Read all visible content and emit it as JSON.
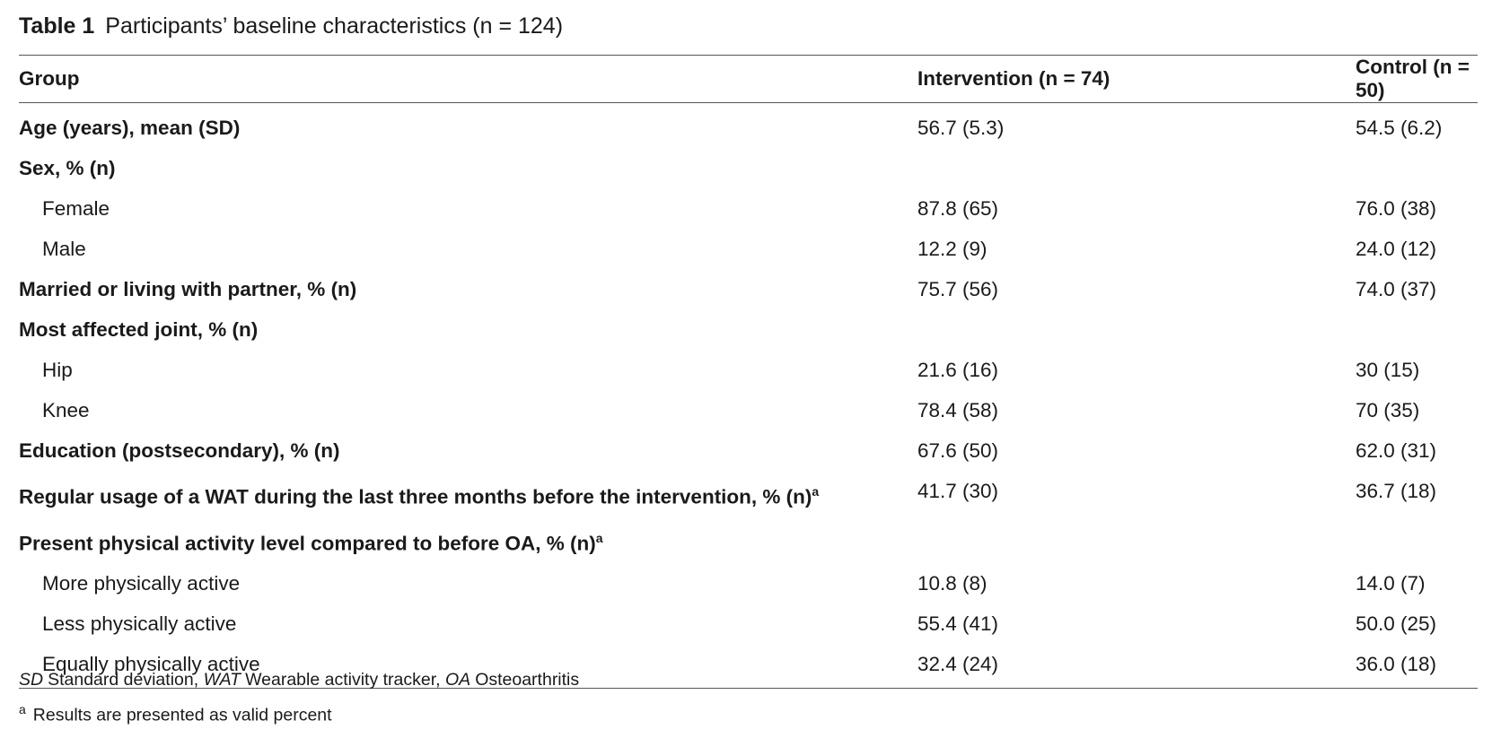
{
  "header": {
    "label": "Table 1",
    "title": "Participants’ baseline characteristics (n = 124)"
  },
  "table": {
    "columns": [
      "Group",
      "Intervention (n = 74)",
      "Control (n = 50)"
    ],
    "rows": [
      {
        "label": "Age (years), mean (SD)",
        "values": [
          "56.7 (5.3)",
          "54.5 (6.2)"
        ]
      },
      {
        "label": "Sex, % (n)",
        "items": [
          {
            "label": "Female",
            "values": [
              "87.8 (65)",
              "76.0 (38)"
            ]
          },
          {
            "label": "Male",
            "values": [
              "12.2 (9)",
              "24.0 (12)"
            ]
          }
        ]
      },
      {
        "label": "Married or living with partner, % (n)",
        "values": [
          "75.7 (56)",
          "74.0 (37)"
        ]
      },
      {
        "label": "Most affected joint, % (n)",
        "items": [
          {
            "label": "Hip",
            "values": [
              "21.6 (16)",
              "30 (15)"
            ]
          },
          {
            "label": "Knee",
            "values": [
              "78.4 (58)",
              "70 (35)"
            ]
          }
        ]
      },
      {
        "label": "Education (postsecondary), % (n)",
        "values": [
          "67.6 (50)",
          "62.0 (31)"
        ]
      },
      {
        "label": "Regular usage of a WAT during the last three months before the intervention, % (n)",
        "note": "a",
        "values": [
          "41.7 (30)",
          "36.7 (18)"
        ]
      },
      {
        "label": "Present physical activity level compared to before OA, % (n)",
        "note": "a",
        "items": [
          {
            "label": "More physically active",
            "values": [
              "10.8 (8)",
              "14.0 (7)"
            ]
          },
          {
            "label": "Less physically active",
            "values": [
              "55.4 (41)",
              "50.0 (25)"
            ]
          },
          {
            "label": "Equally physically active",
            "values": [
              "32.4 (24)",
              "36.0 (18)"
            ]
          }
        ]
      }
    ]
  },
  "footnotes": {
    "abbreviations": [
      {
        "abbr": "SD",
        "text": "Standard deviation,"
      },
      {
        "abbr": "WAT",
        "text": "Wearable activity tracker,"
      },
      {
        "abbr": "OA",
        "text": "Osteoarthritis"
      }
    ],
    "notes": [
      {
        "mark": "a",
        "text": "Results are presented as valid percent"
      }
    ]
  }
}
